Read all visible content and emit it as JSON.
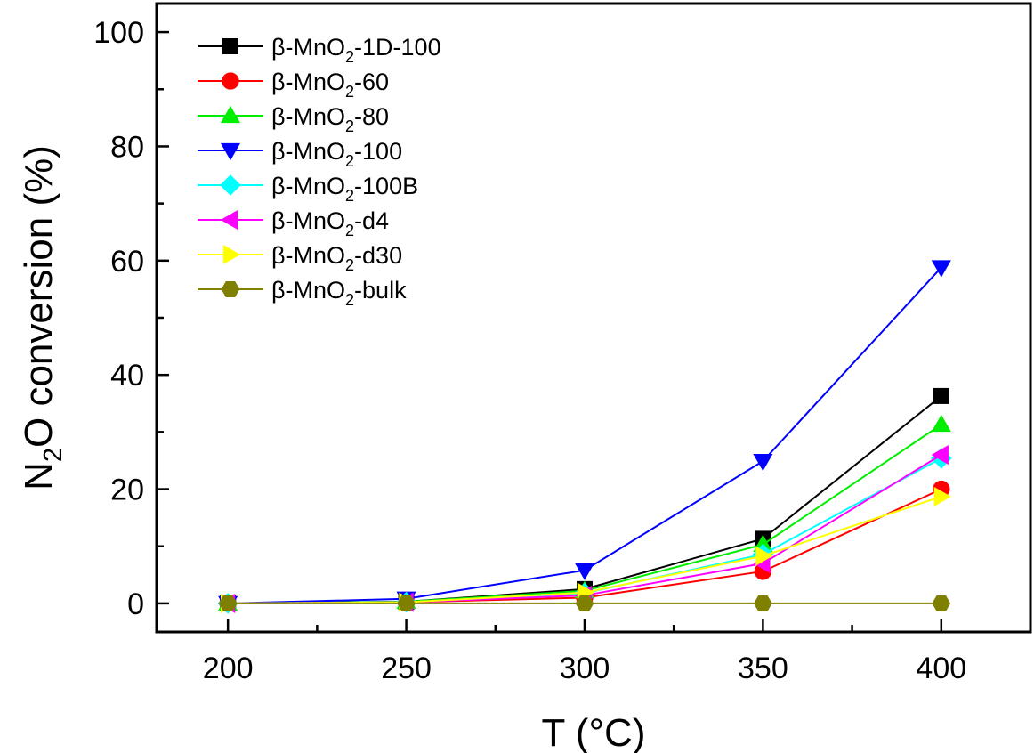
{
  "chart_data": {
    "type": "line",
    "xlabel": "T (°C)",
    "ylabel": "N2O conversion (%)",
    "ylabel_parts": {
      "base1": "N",
      "sub": "2",
      "base2": "O conversion (%)"
    },
    "xlim": [
      180,
      425
    ],
    "ylim": [
      -5,
      105
    ],
    "x": [
      200,
      250,
      300,
      350,
      400
    ],
    "x_ticks": [
      200,
      250,
      300,
      350,
      400
    ],
    "y_ticks": [
      0,
      20,
      40,
      60,
      80,
      100
    ],
    "legend_position": "top-left",
    "grid": false,
    "series": [
      {
        "name": "β-MnO2-1D-100",
        "label_prefix": "β-MnO",
        "label_sub": "2",
        "label_suffix": "-1D-100",
        "color": "#000000",
        "marker": "square",
        "values": [
          0,
          0.3,
          2.5,
          11.3,
          36.3
        ]
      },
      {
        "name": "β-MnO2-60",
        "label_prefix": "β-MnO",
        "label_sub": "2",
        "label_suffix": "-60",
        "color": "#ff0000",
        "marker": "circle",
        "values": [
          0,
          0.2,
          1.0,
          5.6,
          20.0
        ]
      },
      {
        "name": "β-MnO2-80",
        "label_prefix": "β-MnO",
        "label_sub": "2",
        "label_suffix": "-80",
        "color": "#00ee00",
        "marker": "triangle-up",
        "values": [
          0,
          0.3,
          2.2,
          10.3,
          31.3
        ]
      },
      {
        "name": "β-MnO2-100",
        "label_prefix": "β-MnO",
        "label_sub": "2",
        "label_suffix": "-100",
        "color": "#0000ff",
        "marker": "triangle-down",
        "values": [
          0,
          0.8,
          5.8,
          24.9,
          58.8
        ]
      },
      {
        "name": "β-MnO2-100B",
        "label_prefix": "β-MnO",
        "label_sub": "2",
        "label_suffix": "-100B",
        "color": "#00ffff",
        "marker": "diamond",
        "values": [
          0,
          0.2,
          1.8,
          8.6,
          25.4
        ]
      },
      {
        "name": "β-MnO2-d4",
        "label_prefix": "β-MnO",
        "label_sub": "2",
        "label_suffix": "-d4",
        "color": "#ff00ff",
        "marker": "triangle-left",
        "values": [
          0,
          0.2,
          1.4,
          7.0,
          26.0
        ]
      },
      {
        "name": "β-MnO2-d30",
        "label_prefix": "β-MnO",
        "label_sub": "2",
        "label_suffix": "-d30",
        "color": "#ffff00",
        "marker": "triangle-right",
        "values": [
          0,
          0.2,
          1.9,
          8.3,
          18.7
        ]
      },
      {
        "name": "β-MnO2-bulk",
        "label_prefix": "β-MnO",
        "label_sub": "2",
        "label_suffix": "-bulk",
        "color": "#808000",
        "marker": "hexagon",
        "values": [
          0,
          0,
          0,
          0,
          0
        ]
      }
    ]
  }
}
